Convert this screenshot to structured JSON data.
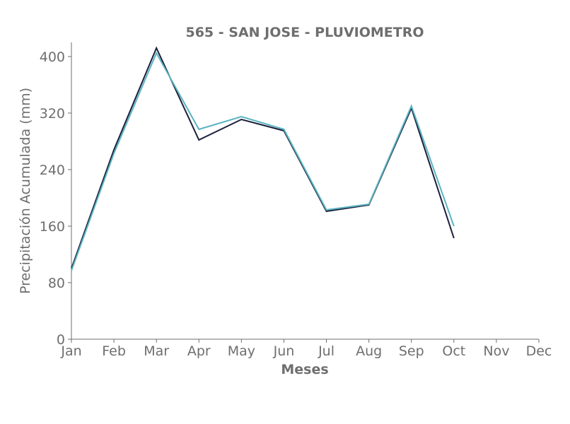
{
  "chart_data": {
    "type": "line",
    "title": "565 - SAN JOSE - PLUVIOMETRO",
    "xlabel": "Meses",
    "ylabel": "Precipitación Acumulada (mm)",
    "categories": [
      "Jan",
      "Feb",
      "Mar",
      "Apr",
      "May",
      "Jun",
      "Jul",
      "Aug",
      "Sep",
      "Oct",
      "Nov",
      "Dec"
    ],
    "ylim": [
      0,
      420
    ],
    "yticks": [
      0,
      80,
      160,
      240,
      320,
      400
    ],
    "grid": false,
    "series": [
      {
        "color": "#1b1f3b",
        "values": [
          100,
          268,
          412,
          282,
          311,
          295,
          181,
          190,
          327,
          143,
          null,
          null
        ]
      },
      {
        "color": "#5ab4c1",
        "values": [
          97,
          263,
          405,
          297,
          315,
          297,
          183,
          191,
          330,
          160,
          null,
          null
        ]
      }
    ]
  }
}
